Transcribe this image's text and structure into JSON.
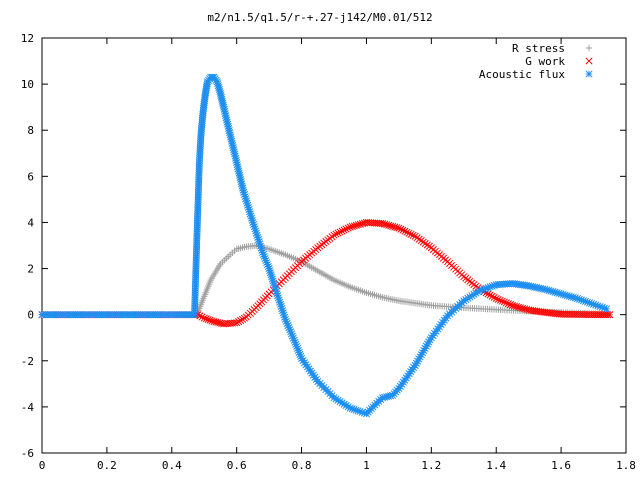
{
  "chart_data": {
    "type": "scatter",
    "title": "m2/n1.5/q1.5/r-+.27-j142/M0.01/512",
    "xlabel": "",
    "ylabel": "",
    "xlim": [
      0,
      1.8
    ],
    "ylim": [
      -6,
      12
    ],
    "x_ticks": [
      "0",
      "0.2",
      "0.4",
      "0.6",
      "0.8",
      "1",
      "1.2",
      "1.4",
      "1.6",
      "1.8"
    ],
    "y_ticks": [
      "-6",
      "-4",
      "-2",
      "0",
      "2",
      "4",
      "6",
      "8",
      "10",
      "12"
    ],
    "grid": false,
    "legend_position": "top-right",
    "series": [
      {
        "name": "R stress",
        "color": "#a0a0a0",
        "marker": "plus",
        "points": [
          [
            0.0,
            0
          ],
          [
            0.1,
            0
          ],
          [
            0.2,
            0
          ],
          [
            0.3,
            0
          ],
          [
            0.4,
            0
          ],
          [
            0.47,
            0
          ],
          [
            0.48,
            0.1
          ],
          [
            0.5,
            0.8
          ],
          [
            0.52,
            1.5
          ],
          [
            0.55,
            2.2
          ],
          [
            0.58,
            2.6
          ],
          [
            0.6,
            2.85
          ],
          [
            0.63,
            2.95
          ],
          [
            0.66,
            3.0
          ],
          [
            0.7,
            2.85
          ],
          [
            0.75,
            2.6
          ],
          [
            0.8,
            2.3
          ],
          [
            0.85,
            1.9
          ],
          [
            0.9,
            1.5
          ],
          [
            0.95,
            1.2
          ],
          [
            1.0,
            0.95
          ],
          [
            1.05,
            0.75
          ],
          [
            1.1,
            0.6
          ],
          [
            1.15,
            0.5
          ],
          [
            1.2,
            0.4
          ],
          [
            1.3,
            0.3
          ],
          [
            1.4,
            0.22
          ],
          [
            1.5,
            0.15
          ],
          [
            1.6,
            0.1
          ],
          [
            1.7,
            0.05
          ],
          [
            1.75,
            0.0
          ]
        ]
      },
      {
        "name": "G work",
        "color": "#ff0000",
        "marker": "cross",
        "points": [
          [
            0.0,
            0
          ],
          [
            0.1,
            0
          ],
          [
            0.2,
            0
          ],
          [
            0.3,
            0
          ],
          [
            0.4,
            0
          ],
          [
            0.48,
            0
          ],
          [
            0.5,
            -0.15
          ],
          [
            0.53,
            -0.3
          ],
          [
            0.56,
            -0.4
          ],
          [
            0.6,
            -0.35
          ],
          [
            0.63,
            -0.1
          ],
          [
            0.66,
            0.3
          ],
          [
            0.7,
            0.9
          ],
          [
            0.75,
            1.6
          ],
          [
            0.8,
            2.3
          ],
          [
            0.85,
            2.9
          ],
          [
            0.9,
            3.45
          ],
          [
            0.95,
            3.8
          ],
          [
            1.0,
            4.0
          ],
          [
            1.05,
            3.95
          ],
          [
            1.1,
            3.75
          ],
          [
            1.15,
            3.4
          ],
          [
            1.2,
            2.9
          ],
          [
            1.25,
            2.3
          ],
          [
            1.3,
            1.65
          ],
          [
            1.35,
            1.1
          ],
          [
            1.4,
            0.7
          ],
          [
            1.45,
            0.4
          ],
          [
            1.5,
            0.2
          ],
          [
            1.55,
            0.1
          ],
          [
            1.6,
            0.02
          ],
          [
            1.7,
            0.0
          ],
          [
            1.75,
            0.0
          ]
        ]
      },
      {
        "name": "Acoustic flux",
        "color": "#1f8ff0",
        "marker": "star",
        "points": [
          [
            0.0,
            0
          ],
          [
            0.1,
            0
          ],
          [
            0.2,
            0
          ],
          [
            0.3,
            0
          ],
          [
            0.4,
            0
          ],
          [
            0.47,
            0
          ],
          [
            0.478,
            3.6
          ],
          [
            0.485,
            6.6
          ],
          [
            0.49,
            7.8
          ],
          [
            0.495,
            8.6
          ],
          [
            0.5,
            9.2
          ],
          [
            0.505,
            9.7
          ],
          [
            0.51,
            10.1
          ],
          [
            0.52,
            10.3
          ],
          [
            0.53,
            10.3
          ],
          [
            0.54,
            10.1
          ],
          [
            0.55,
            9.6
          ],
          [
            0.56,
            9.0
          ],
          [
            0.58,
            7.8
          ],
          [
            0.6,
            6.6
          ],
          [
            0.62,
            5.4
          ],
          [
            0.65,
            4.0
          ],
          [
            0.68,
            2.7
          ],
          [
            0.7,
            2.0
          ],
          [
            0.72,
            1.1
          ],
          [
            0.75,
            -0.2
          ],
          [
            0.78,
            -1.2
          ],
          [
            0.8,
            -1.9
          ],
          [
            0.85,
            -2.9
          ],
          [
            0.9,
            -3.6
          ],
          [
            0.95,
            -4.05
          ],
          [
            0.98,
            -4.2
          ],
          [
            1.0,
            -4.3
          ],
          [
            1.02,
            -4.0
          ],
          [
            1.05,
            -3.6
          ],
          [
            1.08,
            -3.5
          ],
          [
            1.1,
            -3.2
          ],
          [
            1.15,
            -2.2
          ],
          [
            1.2,
            -1.0
          ],
          [
            1.25,
            -0.05
          ],
          [
            1.3,
            0.6
          ],
          [
            1.35,
            1.05
          ],
          [
            1.4,
            1.3
          ],
          [
            1.45,
            1.35
          ],
          [
            1.5,
            1.25
          ],
          [
            1.55,
            1.1
          ],
          [
            1.6,
            0.9
          ],
          [
            1.65,
            0.7
          ],
          [
            1.7,
            0.45
          ],
          [
            1.74,
            0.25
          ]
        ]
      }
    ]
  }
}
